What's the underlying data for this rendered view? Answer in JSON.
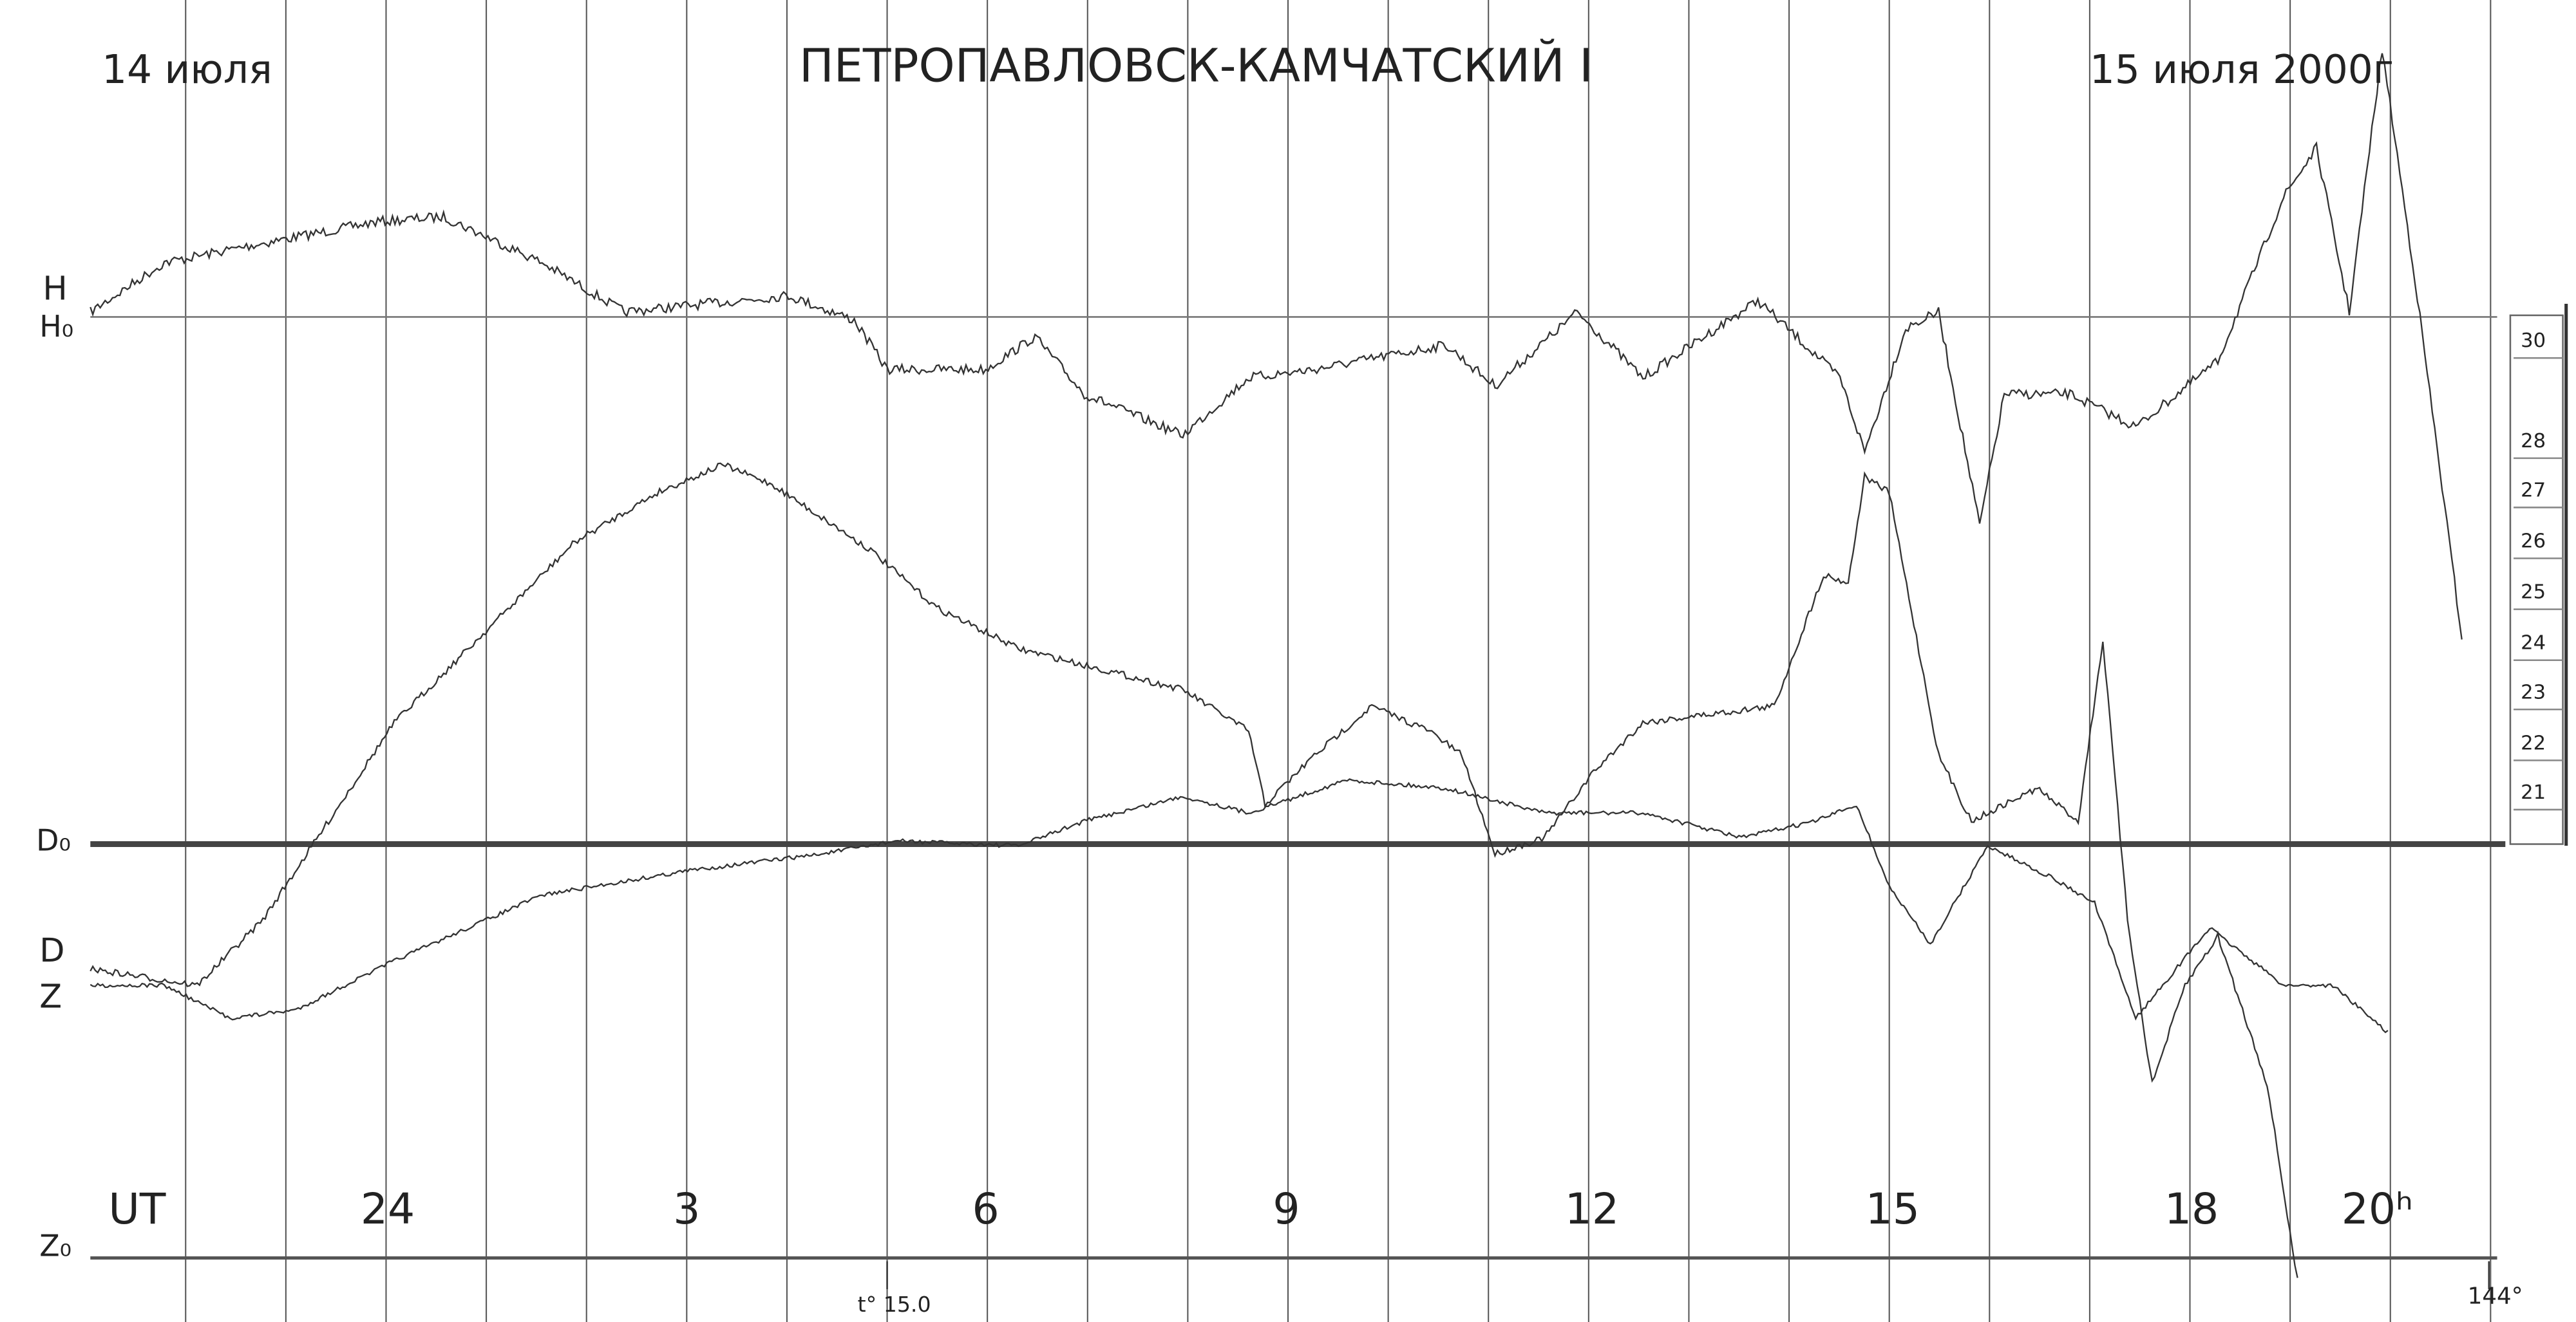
{
  "header": {
    "date_left": "14 июля",
    "title": "ПЕТРОПАВЛОВСК-КАМЧАТСКИЙ I",
    "date_right": "15 июля 2000г"
  },
  "trace_labels": {
    "h": "H",
    "h0": "H₀",
    "d0": "D₀",
    "d": "D",
    "z": "Z",
    "z0": "Z₀"
  },
  "time_axis": {
    "label": "UT",
    "hours": [
      "24",
      "3",
      "6",
      "9",
      "12",
      "15",
      "18",
      "20ʰ"
    ]
  },
  "marks": {
    "temperature": "t° 15.0",
    "angle": "144°"
  },
  "scale": {
    "labels": [
      "30",
      "28",
      "27",
      "26",
      "25",
      "24",
      "23",
      "22",
      "21"
    ]
  }
}
